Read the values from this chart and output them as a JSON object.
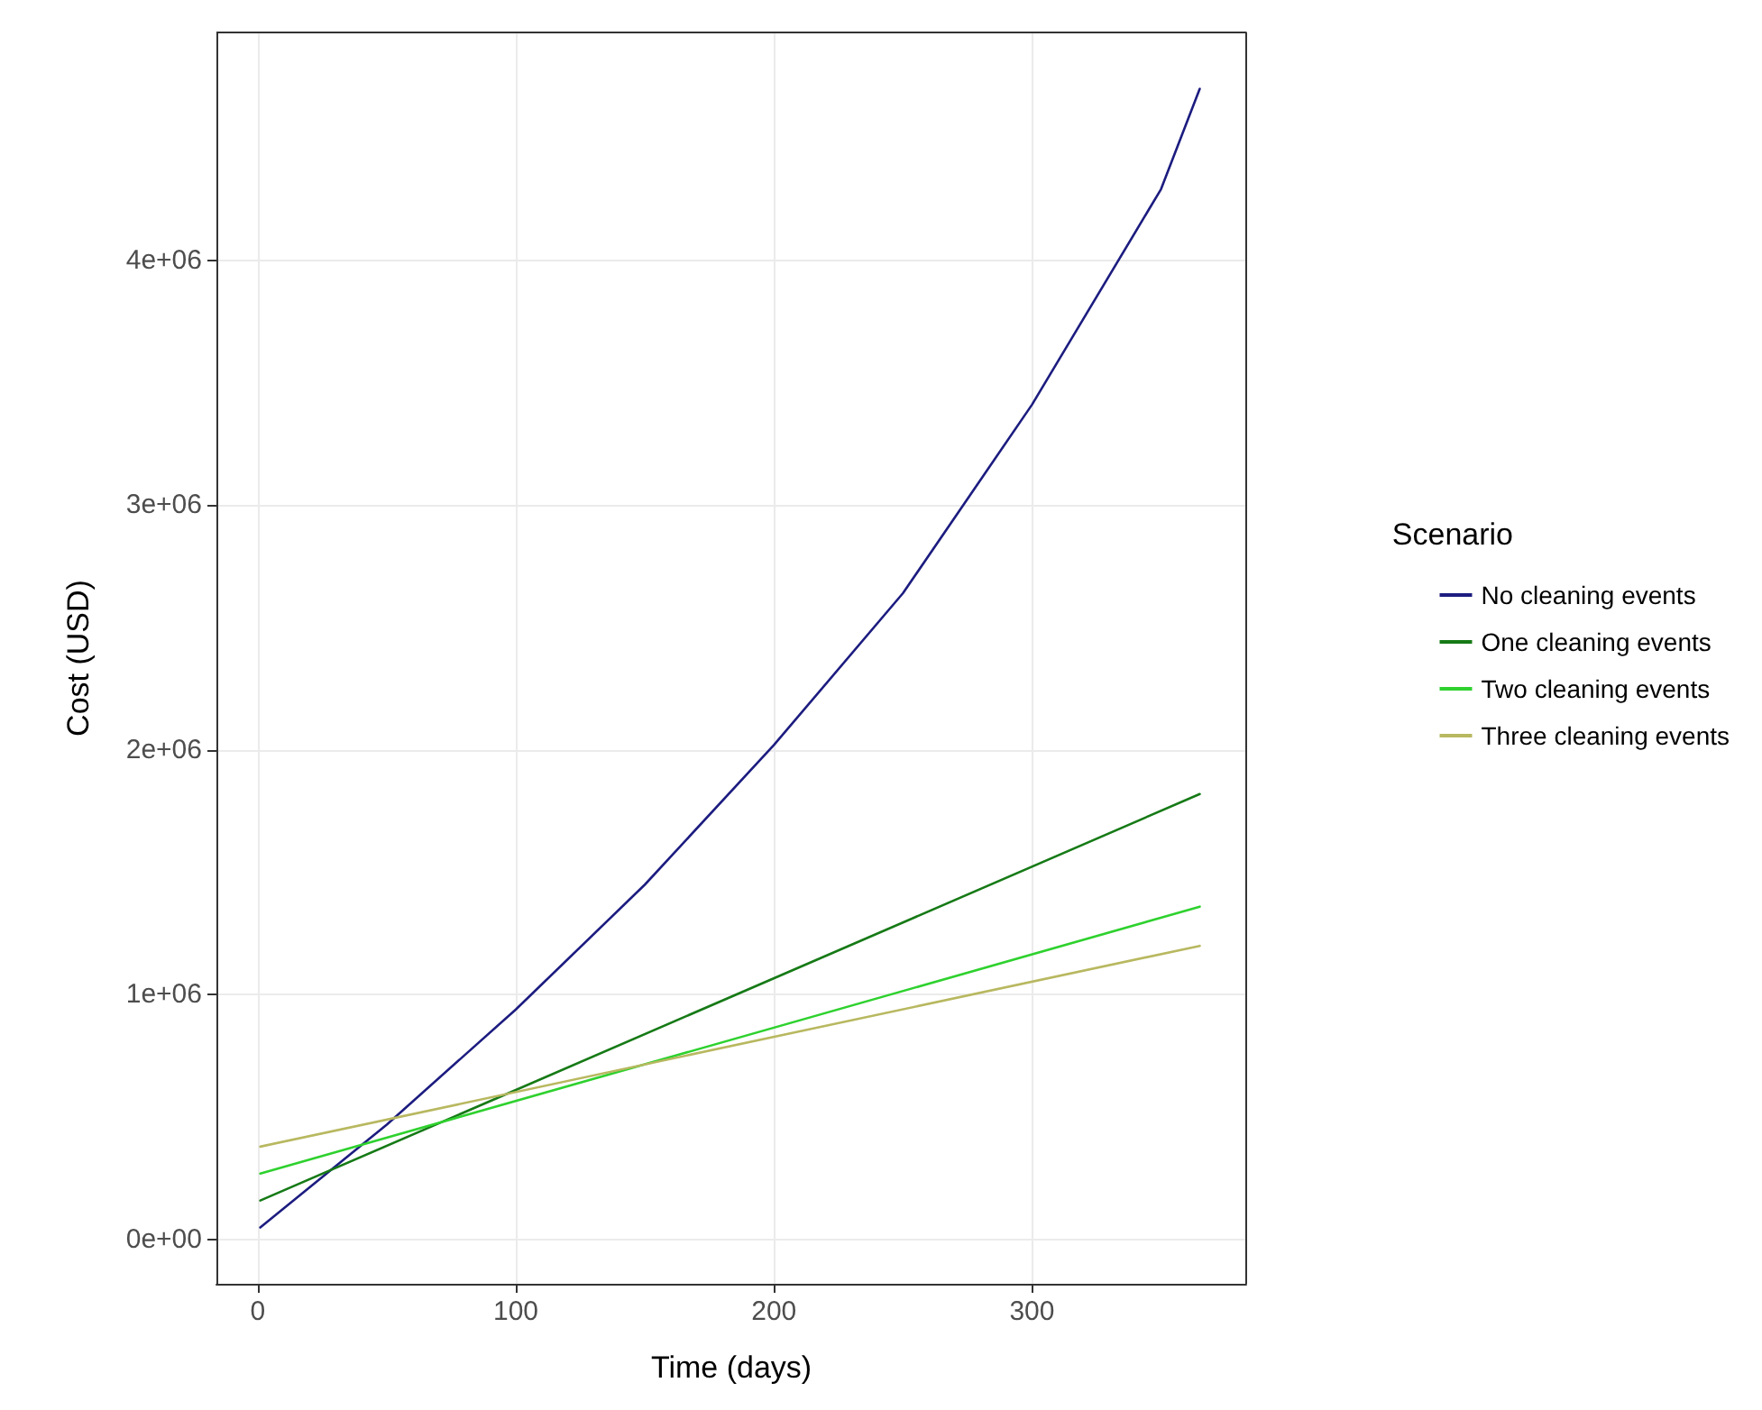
{
  "chart_data": {
    "type": "line",
    "xlabel": "Time (days)",
    "ylabel": "Cost (USD)",
    "legend_title": "Scenario",
    "xlim": [
      -16,
      383
    ],
    "ylim": [
      -180000,
      4930000
    ],
    "xticks": [
      0,
      100,
      200,
      300
    ],
    "yticks": [
      {
        "value": 0,
        "label": "0e+00"
      },
      {
        "value": 1000000,
        "label": "1e+06"
      },
      {
        "value": 2000000,
        "label": "2e+06"
      },
      {
        "value": 3000000,
        "label": "3e+06"
      },
      {
        "value": 4000000,
        "label": "4e+06"
      }
    ],
    "grid": true,
    "legend": "right",
    "marker": "none",
    "line_style": "solid",
    "series": [
      {
        "name": "No cleaning events",
        "color": "#1c1c80",
        "x": [
          1,
          50,
          100,
          150,
          200,
          250,
          300,
          350,
          365
        ],
        "values": [
          50000,
          470000,
          940000,
          1450000,
          2020000,
          2640000,
          3410000,
          4290000,
          4700000
        ]
      },
      {
        "name": "One cleaning events",
        "color": "#167a16",
        "x": [
          1,
          365
        ],
        "values": [
          160000,
          1820000
        ]
      },
      {
        "name": "Two cleaning events",
        "color": "#2ed12e",
        "x": [
          1,
          365
        ],
        "values": [
          270000,
          1360000
        ]
      },
      {
        "name": "Three cleaning events",
        "color": "#b8b860",
        "x": [
          1,
          365
        ],
        "values": [
          380000,
          1200000
        ]
      }
    ]
  }
}
